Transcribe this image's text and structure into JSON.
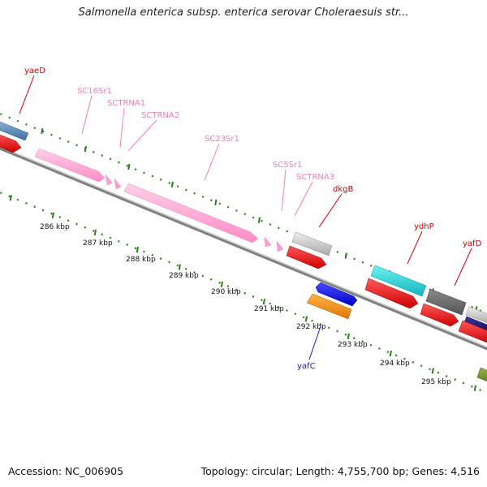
{
  "title": "Salmonella enterica subsp. enterica serovar Choleraesuis str...",
  "footer": {
    "accession": "Accession: NC_006905",
    "summary": "Topology: circular; Length: 4,755,700 bp; Genes: 4,516"
  },
  "colors": {
    "backbone": "#808080",
    "tick_marks": "#2e7d1e",
    "rna": "#ff9ecf",
    "forward_red": "#ee1111",
    "label_red": "#d40000",
    "label_pink": "#ee7fb8",
    "label_blue": "#1a1acc"
  },
  "scale": {
    "unit": "kbp",
    "ticks": [
      {
        "label": "286 kbp"
      },
      {
        "label": "287 kbp"
      },
      {
        "label": "288 kbp"
      },
      {
        "label": "289 kbp"
      },
      {
        "label": "290 kbp"
      },
      {
        "label": "291 kbp"
      },
      {
        "label": "292 kbp"
      },
      {
        "label": "293 kbp"
      },
      {
        "label": "294 kbp"
      },
      {
        "label": "295 kbp"
      }
    ]
  },
  "genes": [
    {
      "name": "yaeD",
      "color": "#d40000"
    },
    {
      "name": "SC16Sr1",
      "color": "#ee7fb8"
    },
    {
      "name": "SCTRNA1",
      "color": "#ee7fb8"
    },
    {
      "name": "SCTRNA2",
      "color": "#ee7fb8"
    },
    {
      "name": "SC23Sr1",
      "color": "#ee7fb8"
    },
    {
      "name": "SC5Sr1",
      "color": "#ee7fb8"
    },
    {
      "name": "SCTRNA3",
      "color": "#ee7fb8"
    },
    {
      "name": "dkgB",
      "color": "#d40000"
    },
    {
      "name": "ydhP",
      "color": "#d40000"
    },
    {
      "name": "yafD",
      "color": "#d40000"
    },
    {
      "name": "yafC",
      "color": "#1a1acc"
    }
  ]
}
